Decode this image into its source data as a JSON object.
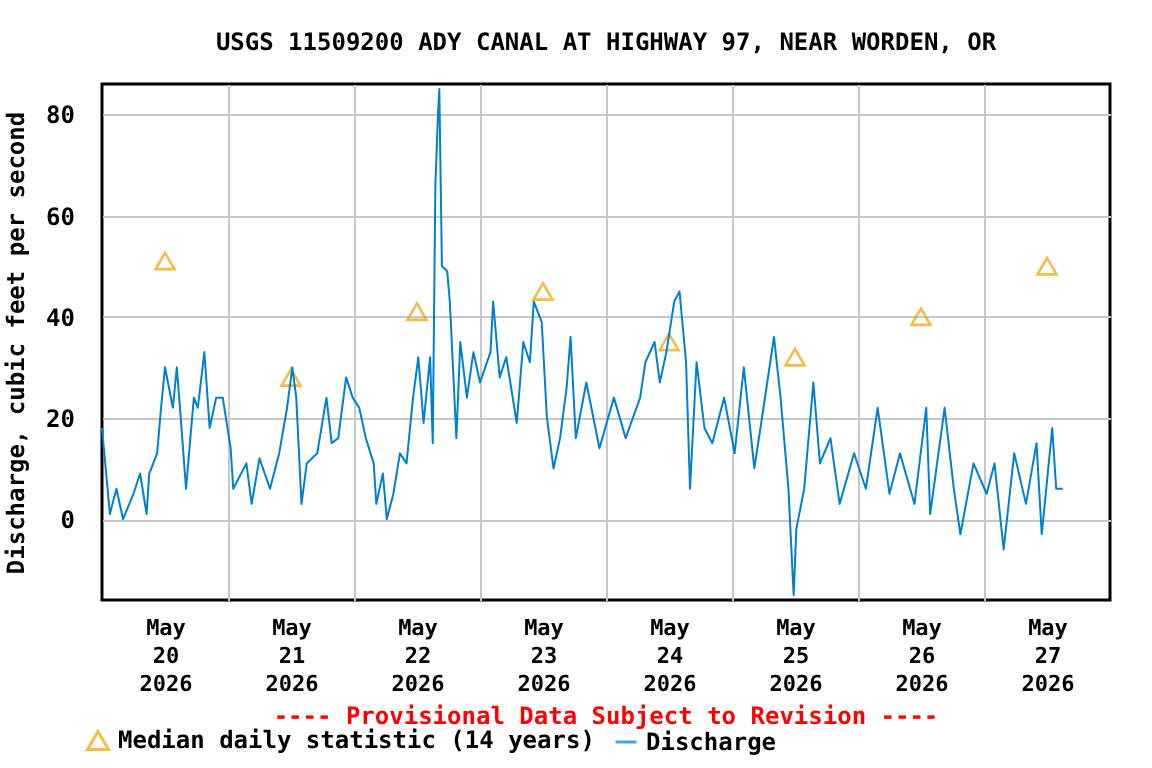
{
  "chart_data": {
    "type": "line",
    "title": "USGS 11509200 ADY CANAL AT HIGHWAY 97, NEAR WORDEN, OR",
    "ylabel": "Discharge, cubic feet per second",
    "annotations": [
      "---- Provisional Data Subject to Revision ----"
    ],
    "xlim": [
      "2026-05-20T00:00",
      "2026-05-28T00:00"
    ],
    "xticks": [
      {
        "value": "2026-05-20T12:00",
        "label": "May 20 2026"
      },
      {
        "value": "2026-05-21T00:00",
        "label": null
      },
      {
        "value": "2026-05-21T12:00",
        "label": "May 21 2026"
      },
      {
        "value": "2026-05-22T00:00",
        "label": null
      },
      {
        "value": "2026-05-22T12:00",
        "label": "May 22 2026"
      },
      {
        "value": "2026-05-23T00:00",
        "label": null
      },
      {
        "value": "2026-05-23T12:00",
        "label": "May 23 2026"
      },
      {
        "value": "2026-05-24T00:00",
        "label": null
      },
      {
        "value": "2026-05-24T12:00",
        "label": "May 24 2026"
      },
      {
        "value": "2026-05-25T00:00",
        "label": null
      },
      {
        "value": "2026-05-25T12:00",
        "label": "May 25 2026"
      },
      {
        "value": "2026-05-26T00:00",
        "label": null
      },
      {
        "value": "2026-05-26T12:00",
        "label": "May 26 2026"
      },
      {
        "value": "2026-05-27T00:00",
        "label": null
      },
      {
        "value": "2026-05-27T12:00",
        "label": "May 27 2026"
      }
    ],
    "ylim": [
      -16,
      86
    ],
    "yticks": [
      0,
      20,
      40,
      60,
      80
    ],
    "grid": true,
    "legend": "bottom left",
    "series": [
      {
        "name": "Median daily statistic (14 years)",
        "type": "scatter",
        "marker": "triangle",
        "color": "#f0a000",
        "x": [
          "2026-05-20T12:00",
          "2026-05-21T12:00",
          "2026-05-22T12:00",
          "2026-05-23T12:00",
          "2026-05-24T12:00",
          "2026-05-25T12:00",
          "2026-05-26T12:00",
          "2026-05-27T12:00"
        ],
        "values": [
          51,
          28,
          41,
          45,
          35,
          32,
          40,
          50
        ]
      },
      {
        "name": "Discharge",
        "type": "line",
        "color": "#0080d0",
        "x": [
          "2026-05-20T00:00",
          "2026-05-20T01:30",
          "2026-05-20T02:45",
          "2026-05-20T04:00",
          "2026-05-20T06:00",
          "2026-05-20T07:15",
          "2026-05-20T08:30",
          "2026-05-20T09:00",
          "2026-05-20T10:30",
          "2026-05-20T11:15",
          "2026-05-20T12:00",
          "2026-05-20T13:30",
          "2026-05-20T14:15",
          "2026-05-20T15:00",
          "2026-05-20T16:00",
          "2026-05-20T17:30",
          "2026-05-20T18:15",
          "2026-05-20T19:30",
          "2026-05-20T20:30",
          "2026-05-20T21:45",
          "2026-05-20T23:00",
          "2026-05-21T00:30",
          "2026-05-21T01:00",
          "2026-05-21T03:30",
          "2026-05-21T04:30",
          "2026-05-21T06:00",
          "2026-05-21T08:00",
          "2026-05-21T09:45",
          "2026-05-21T11:15",
          "2026-05-21T12:15",
          "2026-05-21T13:00",
          "2026-05-21T14:00",
          "2026-05-21T15:00",
          "2026-05-21T17:00",
          "2026-05-21T18:45",
          "2026-05-21T19:45",
          "2026-05-21T21:00",
          "2026-05-21T22:30",
          "2026-05-21T23:45",
          "2026-05-22T01:00",
          "2026-05-22T02:15",
          "2026-05-22T03:45",
          "2026-05-22T04:15",
          "2026-05-22T05:30",
          "2026-05-22T06:15",
          "2026-05-22T07:30",
          "2026-05-22T08:45",
          "2026-05-22T10:00",
          "2026-05-22T11:15",
          "2026-05-22T12:15",
          "2026-05-22T13:15",
          "2026-05-22T14:30",
          "2026-05-22T15:00",
          "2026-05-22T15:30",
          "2026-05-22T16:00",
          "2026-05-22T16:15",
          "2026-05-22T16:45",
          "2026-05-22T17:45",
          "2026-05-22T18:15",
          "2026-05-22T19:30",
          "2026-05-22T20:15",
          "2026-05-22T21:30",
          "2026-05-22T22:45",
          "2026-05-23T00:00",
          "2026-05-23T02:00",
          "2026-05-23T02:30",
          "2026-05-23T03:45",
          "2026-05-23T05:00",
          "2026-05-23T07:00",
          "2026-05-23T08:15",
          "2026-05-23T09:30",
          "2026-05-23T10:15",
          "2026-05-23T11:45",
          "2026-05-23T12:45",
          "2026-05-23T14:00",
          "2026-05-23T15:15",
          "2026-05-23T16:30",
          "2026-05-23T17:15",
          "2026-05-23T18:15",
          "2026-05-23T20:15",
          "2026-05-23T22:45",
          "2026-05-24T01:30",
          "2026-05-24T03:45",
          "2026-05-24T06:30",
          "2026-05-24T07:30",
          "2026-05-24T09:15",
          "2026-05-24T10:15",
          "2026-05-24T11:30",
          "2026-05-24T13:00",
          "2026-05-24T14:00",
          "2026-05-24T15:15",
          "2026-05-24T16:00",
          "2026-05-24T17:15",
          "2026-05-24T18:45",
          "2026-05-24T20:15",
          "2026-05-24T22:30",
          "2026-05-25T00:30",
          "2026-05-25T02:15",
          "2026-05-25T04:15",
          "2026-05-25T06:00",
          "2026-05-25T08:00",
          "2026-05-25T09:15",
          "2026-05-25T10:00",
          "2026-05-25T10:45",
          "2026-05-25T11:30",
          "2026-05-25T11:45",
          "2026-05-25T12:15",
          "2026-05-25T13:45",
          "2026-05-25T15:30",
          "2026-05-25T16:45",
          "2026-05-25T18:45",
          "2026-05-25T20:30",
          "2026-05-25T23:15",
          "2026-05-26T01:30",
          "2026-05-26T03:45",
          "2026-05-26T06:00",
          "2026-05-26T08:00",
          "2026-05-26T10:45",
          "2026-05-26T13:00",
          "2026-05-26T13:45",
          "2026-05-26T16:30",
          "2026-05-26T18:15",
          "2026-05-26T19:30",
          "2026-05-26T22:00",
          "2026-05-27T00:30",
          "2026-05-27T02:00",
          "2026-05-27T03:45",
          "2026-05-27T05:45",
          "2026-05-27T08:00",
          "2026-05-27T10:00",
          "2026-05-27T11:00",
          "2026-05-27T13:00",
          "2026-05-27T13:45",
          "2026-05-27T15:00"
        ],
        "values": [
          18,
          1,
          6,
          0,
          5,
          9,
          1,
          9,
          13,
          22,
          30,
          22,
          30,
          20,
          6,
          24,
          22,
          33,
          18,
          24,
          24,
          14,
          6,
          11,
          3,
          12,
          6,
          13,
          22,
          30,
          24,
          3,
          11,
          13,
          24,
          15,
          16,
          28,
          24,
          22,
          16,
          11,
          3,
          9,
          0,
          5,
          13,
          11,
          24,
          32,
          19,
          32,
          15,
          66,
          80,
          85,
          50,
          49,
          43,
          16,
          35,
          24,
          33,
          27,
          33,
          43,
          28,
          32,
          19,
          35,
          31,
          43,
          39,
          20,
          10,
          16,
          26,
          36,
          16,
          27,
          14,
          24,
          16,
          24,
          31,
          35,
          27,
          33,
          43,
          45,
          31,
          6,
          31,
          18,
          15,
          24,
          13,
          30,
          10,
          22,
          36,
          24,
          15,
          6,
          -10,
          -15,
          -2,
          6,
          27,
          11,
          16,
          3,
          13,
          6,
          22,
          5,
          13,
          3,
          22,
          1,
          22,
          6,
          -3,
          11,
          5,
          11,
          -6,
          13,
          3,
          15,
          -3,
          18,
          6,
          6
        ]
      }
    ]
  }
}
